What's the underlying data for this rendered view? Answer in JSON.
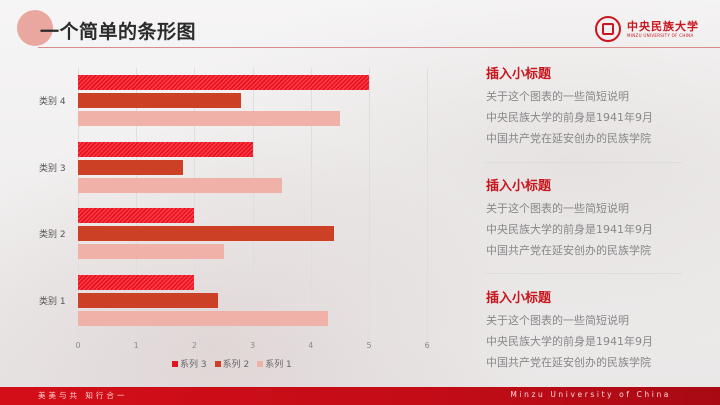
{
  "header": {
    "title": "一个简单的条形图",
    "logo": {
      "name_cn": "中央民族大学",
      "name_en": "MINZU UNIVERSITY OF CHINA"
    }
  },
  "chart_data": {
    "type": "bar",
    "orientation": "horizontal",
    "title": "",
    "xlabel": "",
    "ylabel": "",
    "categories": [
      "类别 1",
      "类别 2",
      "类别 3",
      "类别 4"
    ],
    "series": [
      {
        "name": "系列 1",
        "color": "#efb1a8",
        "values": [
          4.3,
          2.5,
          3.5,
          4.5
        ]
      },
      {
        "name": "系列 2",
        "color": "#cc4126",
        "values": [
          2.4,
          4.4,
          1.8,
          2.8
        ]
      },
      {
        "name": "系列 3",
        "color": "#e0131f",
        "pattern": "diagonal-stripes",
        "values": [
          2,
          2,
          3,
          5
        ]
      }
    ],
    "xlim": [
      0,
      6
    ],
    "xticks": [
      "0",
      "1",
      "2",
      "3",
      "4",
      "5",
      "6"
    ],
    "grid": true,
    "legend_position": "bottom",
    "legend_order": [
      "系列 3",
      "系列 2",
      "系列 1"
    ]
  },
  "side": {
    "cards": [
      {
        "title": "插入小标题",
        "lines": [
          "关于这个图表的一些简短说明",
          "中央民族大学的前身是1941年9月",
          "中国共产党在延安创办的民族学院"
        ]
      },
      {
        "title": "插入小标题",
        "lines": [
          "关于这个图表的一些简短说明",
          "中央民族大学的前身是1941年9月",
          "中国共产党在延安创办的民族学院"
        ]
      },
      {
        "title": "插入小标题",
        "lines": [
          "关于这个图表的一些简短说明",
          "中央民族大学的前身是1941年9月",
          "中国共产党在延安创办的民族学院"
        ]
      }
    ]
  },
  "footer": {
    "motto": "美美与共  知行合一",
    "english": "Minzu University of China"
  }
}
